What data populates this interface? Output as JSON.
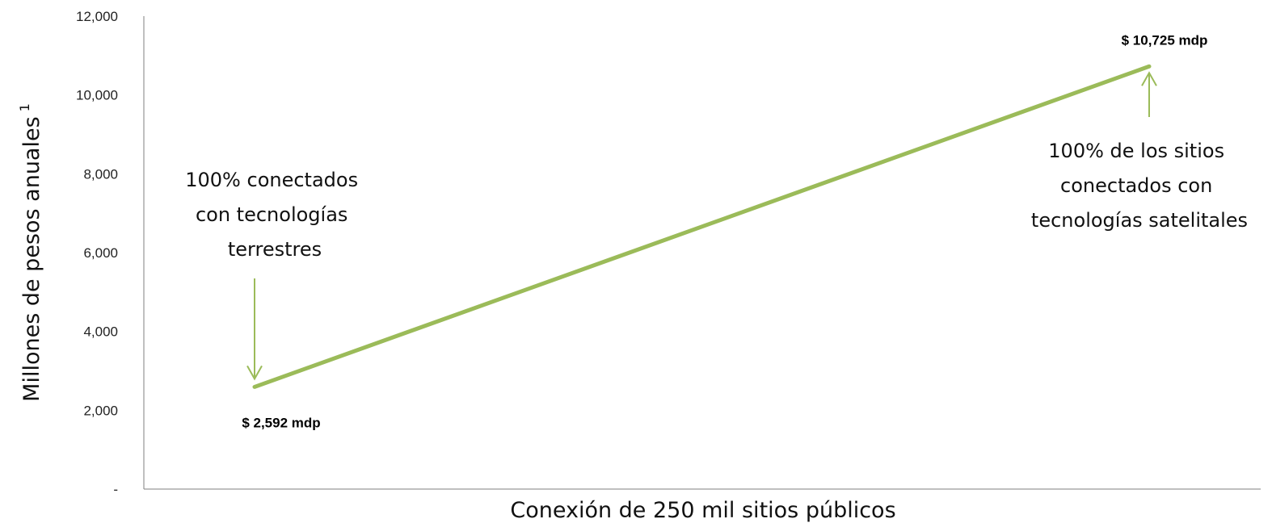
{
  "chart_data": {
    "type": "line",
    "title": "",
    "xlabel": "Conexión de 250 mil sitios públicos",
    "ylabel": "Millones de pesos anuales",
    "ylabel_superscript": "1",
    "ylim": [
      0,
      12000
    ],
    "yticks": [
      {
        "value": 0,
        "label": "-"
      },
      {
        "value": 2000,
        "label": "2,000"
      },
      {
        "value": 4000,
        "label": "4,000"
      },
      {
        "value": 6000,
        "label": "6,000"
      },
      {
        "value": 8000,
        "label": "8,000"
      },
      {
        "value": 10000,
        "label": "10,000"
      },
      {
        "value": 12000,
        "label": "12,000"
      }
    ],
    "xlim": [
      0,
      100
    ],
    "grid": false,
    "legend": "none",
    "series": [
      {
        "color": "#9bbb59",
        "points": [
          {
            "x": 0,
            "y": 2592,
            "label": "$ 2,592 mdp"
          },
          {
            "x": 100,
            "y": 10725,
            "label": "$ 10,725 mdp"
          }
        ]
      }
    ],
    "annotations": [
      {
        "point": 0,
        "lines": [
          "100% conectados",
          "con tecnologías",
          "terrestres"
        ]
      },
      {
        "point": 1,
        "lines": [
          "100% de los sitios",
          "conectados con",
          "tecnologías satelitales"
        ]
      }
    ],
    "colors": {
      "line": "#9bbb59",
      "arrow": "#9bbb59",
      "axis": "#7f7f7f"
    }
  }
}
